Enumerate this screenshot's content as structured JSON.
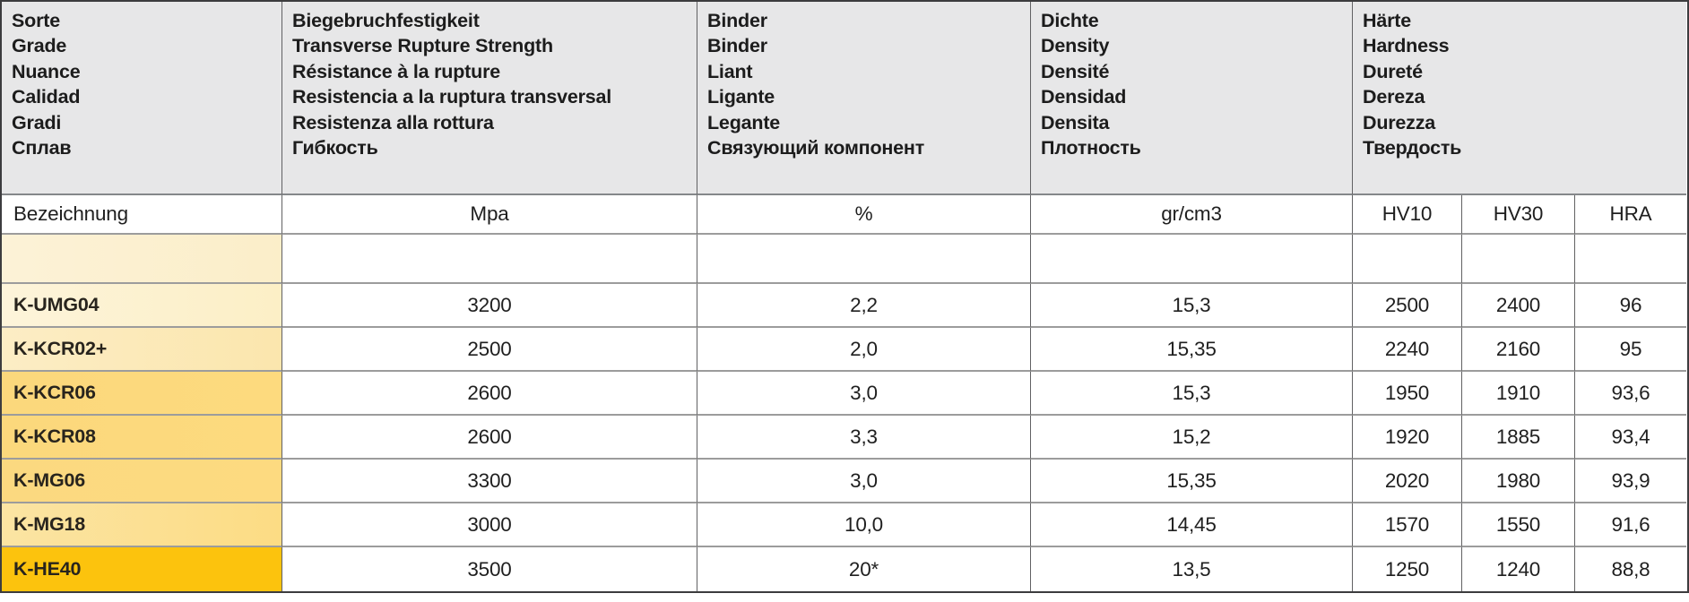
{
  "colors": {
    "header_bg": "#e7e7e8",
    "body_bg": "#ffffff",
    "outer_border": "#3c3c3e",
    "grid_line_dark": "#616163",
    "grid_line_gray": "#9c9c9c",
    "grade_text": "#28241d",
    "value_text": "#1f1f1f"
  },
  "header": {
    "grade": "Sorte\nGrade\nNuance\nCalidad\nGradi\nСплав",
    "rupture": "Biegebruchfestigkeit\nTransverse Rupture Strength\nRésistance à la rupture\nResistencia a la ruptura transversal\nResistenza alla rottura\nГибкость",
    "binder": "Binder\nBinder\nLiant\nLigante\nLegante\nСвязующий компонент",
    "density": "Dichte\nDensity\nDensité\nDensidad\nDensita\nПлотность",
    "hardness": "Härte\nHardness\nDureté\nDereza\nDurezza\nТвердость"
  },
  "units": {
    "designation": "Bezeichnung",
    "rupture": "Mpa",
    "binder": "%",
    "density": "gr/cm3",
    "hv10": "HV10",
    "hv30": "HV30",
    "hra": "HRA"
  },
  "spacer_row": {
    "color": "#fcf2d7",
    "color2": "#fbeec9"
  },
  "rows": [
    {
      "grade": "K-UMG04",
      "rupture": "3200",
      "binder": "2,2",
      "density": "15,3",
      "hv10": "2500",
      "hv30": "2400",
      "hra": "96",
      "color": "#fdf4da",
      "color2": "#fcefc6"
    },
    {
      "grade": "K-KCR02+",
      "rupture": "2500",
      "binder": "2,0",
      "density": "15,35",
      "hv10": "2240",
      "hv30": "2160",
      "hra": "95",
      "color": "#fcedc5",
      "color2": "#fbe6ad"
    },
    {
      "grade": "K-KCR06",
      "rupture": "2600",
      "binder": "3,0",
      "density": "15,3",
      "hv10": "1950",
      "hv30": "1910",
      "hra": "93,6",
      "color": "#fbd87c",
      "color2": "#fdda7e"
    },
    {
      "grade": "K-KCR08",
      "rupture": "2600",
      "binder": "3,3",
      "density": "15,2",
      "hv10": "1920",
      "hv30": "1885",
      "hra": "93,4",
      "color": "#fbd87c",
      "color2": "#fdda7e"
    },
    {
      "grade": "K-MG06",
      "rupture": "3300",
      "binder": "3,0",
      "density": "15,35",
      "hv10": "2020",
      "hv30": "1980",
      "hra": "93,9",
      "color": "#fbd980",
      "color2": "#fdda80"
    },
    {
      "grade": "K-MG18",
      "rupture": "3000",
      "binder": "10,0",
      "density": "14,45",
      "hv10": "1570",
      "hv30": "1550",
      "hra": "91,6",
      "color": "#fbe4a3",
      "color2": "#fcdc84"
    },
    {
      "grade": "K-HE40",
      "rupture": "3500",
      "binder": "20*",
      "density": "13,5",
      "hv10": "1250",
      "hv30": "1240",
      "hra": "88,8",
      "color": "#fcc30d",
      "color2": "#fcc30d"
    }
  ]
}
